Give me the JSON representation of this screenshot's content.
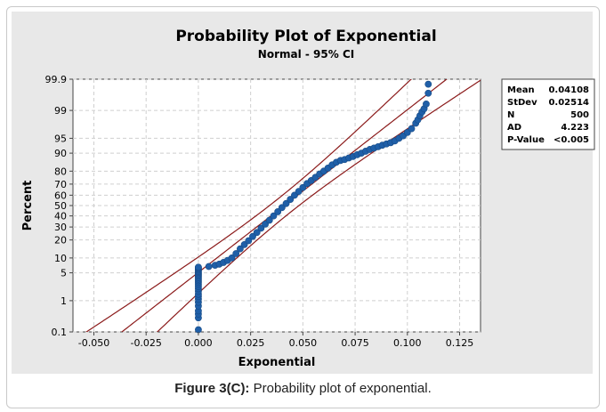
{
  "caption": {
    "label": "Figure 3(C):",
    "text": " Probability plot of exponential."
  },
  "chart_data": {
    "type": "scatter",
    "title": "Probability Plot of Exponential",
    "subtitle": "Normal - 95% CI",
    "xlabel": "Exponential",
    "ylabel": "Percent",
    "xlim": [
      -0.06,
      0.135
    ],
    "x_ticks": [
      -0.05,
      -0.025,
      0.0,
      0.025,
      0.05,
      0.075,
      0.1,
      0.125
    ],
    "x_tick_labels": [
      "-0.050",
      "-0.025",
      "0.000",
      "0.025",
      "0.050",
      "0.075",
      "0.100",
      "0.125"
    ],
    "y_scale": "normal-probability",
    "y_ticks": [
      0.1,
      1,
      5,
      10,
      20,
      30,
      40,
      50,
      60,
      70,
      80,
      90,
      95,
      99,
      99.9
    ],
    "y_tick_labels": [
      "0.1",
      "1",
      "5",
      "10",
      "20",
      "30",
      "40",
      "50",
      "60",
      "70",
      "80",
      "90",
      "95",
      "99",
      "99.9"
    ],
    "grid": true,
    "colors": {
      "points": "#1f5fa8",
      "fit_line": "#8b1a1a",
      "panel": "#e8e8e8",
      "plot_bg": "#ffffff"
    },
    "fit": {
      "mean": 0.04108,
      "stdev": 0.02514,
      "ci_level": 0.95,
      "n": 500
    },
    "stats": [
      {
        "label": "Mean",
        "value": "0.04108"
      },
      {
        "label": "StDev",
        "value": "0.02514"
      },
      {
        "label": "N",
        "value": "500"
      },
      {
        "label": "AD",
        "value": "4.223"
      },
      {
        "label": "P-Value",
        "value": "<0.005"
      }
    ],
    "points": {
      "x": [
        0,
        0,
        0,
        0,
        0,
        0,
        0,
        0,
        0,
        0,
        0,
        0,
        0,
        0,
        0,
        0,
        0,
        0,
        0,
        0,
        0,
        0,
        0,
        0,
        0,
        0,
        0.005,
        0.008,
        0.01,
        0.012,
        0.014,
        0.016,
        0.018,
        0.02,
        0.022,
        0.024,
        0.026,
        0.028,
        0.03,
        0.032,
        0.034,
        0.036,
        0.038,
        0.04,
        0.042,
        0.044,
        0.046,
        0.048,
        0.05,
        0.052,
        0.054,
        0.056,
        0.058,
        0.06,
        0.062,
        0.064,
        0.066,
        0.068,
        0.07,
        0.072,
        0.074,
        0.076,
        0.078,
        0.08,
        0.082,
        0.084,
        0.086,
        0.088,
        0.09,
        0.092,
        0.094,
        0.096,
        0.098,
        0.1,
        0.102,
        0.104,
        0.105,
        0.106,
        0.107,
        0.108,
        0.109,
        0.11,
        0.11
      ],
      "y": [
        0.12,
        0.3,
        0.4,
        0.5,
        0.7,
        0.9,
        1.1,
        1.3,
        1.5,
        1.8,
        2.1,
        2.4,
        2.7,
        3.0,
        3.3,
        3.6,
        3.9,
        4.2,
        4.5,
        4.8,
        5.1,
        5.4,
        5.7,
        6.0,
        6.3,
        6.6,
        6.8,
        7.2,
        7.6,
        8.2,
        9.0,
        10.0,
        12.0,
        14.5,
        17.0,
        19.5,
        22.5,
        25.5,
        29.0,
        32.5,
        36.0,
        40.0,
        44.0,
        48.0,
        52.0,
        56.0,
        60.0,
        63.5,
        67.0,
        70.5,
        73.0,
        75.5,
        78.0,
        80.0,
        82.0,
        84.0,
        85.5,
        86.5,
        87.0,
        87.8,
        88.5,
        89.3,
        90.0,
        90.8,
        91.5,
        92.0,
        92.5,
        93.0,
        93.4,
        93.8,
        94.3,
        95.0,
        95.6,
        96.3,
        97.0,
        97.8,
        98.2,
        98.6,
        98.9,
        99.1,
        99.35,
        99.7,
        99.85
      ]
    }
  }
}
